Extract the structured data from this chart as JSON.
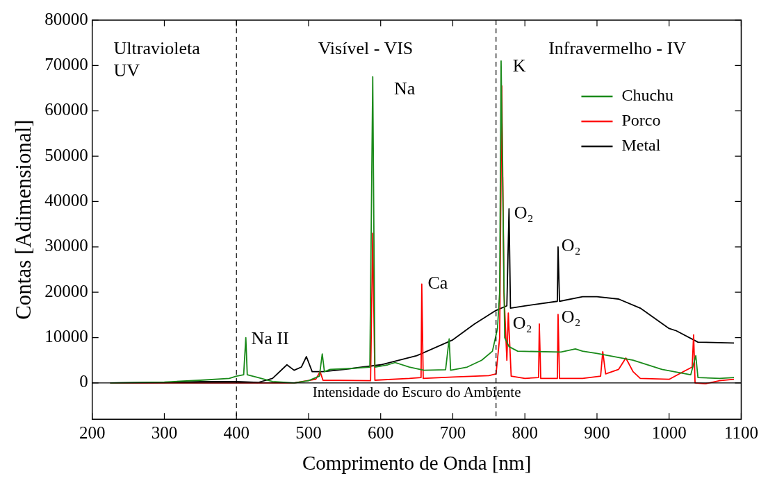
{
  "chart_data": {
    "type": "line",
    "xlabel": "Comprimento de Onda [nm]",
    "ylabel": "Contas [Adimensional]",
    "xlim": [
      200,
      1100
    ],
    "xticks": [
      200,
      300,
      400,
      500,
      600,
      700,
      800,
      900,
      1000,
      1100
    ],
    "ylim": [
      -8000,
      80000
    ],
    "yticks": [
      0,
      10000,
      20000,
      30000,
      40000,
      50000,
      60000,
      70000,
      80000
    ],
    "grid": false,
    "legend": "top right",
    "marker": "none",
    "line_style": "solid",
    "series": [
      {
        "name": "Chuchu",
        "color": "#1a8a1a",
        "x": [
          225,
          300,
          350,
          390,
          400,
          410,
          413,
          415,
          430,
          450,
          480,
          500,
          515,
          519,
          522,
          530,
          560,
          585,
          589,
          592,
          610,
          620,
          640,
          660,
          690,
          695,
          697,
          720,
          740,
          755,
          762,
          765,
          767,
          772,
          778,
          790,
          850,
          870,
          880,
          900,
          950,
          990,
          1030,
          1037,
          1040,
          1070,
          1090
        ],
        "values": [
          0,
          200,
          600,
          1000,
          1500,
          1800,
          10000,
          1800,
          1200,
          300,
          0,
          500,
          1500,
          6400,
          2500,
          3000,
          3200,
          3500,
          67500,
          3500,
          4000,
          4500,
          3500,
          2800,
          2900,
          9700,
          2800,
          3500,
          5000,
          7000,
          12000,
          20000,
          71000,
          10000,
          8000,
          7000,
          6800,
          7500,
          7000,
          6500,
          5000,
          3000,
          1800,
          6000,
          1200,
          1000,
          1200
        ]
      },
      {
        "name": "Porco",
        "color": "#ff0000",
        "x": [
          225,
          480,
          510,
          516,
          520,
          586,
          589,
          592,
          640,
          656,
          657,
          659,
          700,
          750,
          760,
          765,
          768,
          771,
          775,
          777,
          781,
          800,
          819,
          820,
          822,
          845,
          846,
          848,
          880,
          905,
          908,
          912,
          930,
          940,
          950,
          960,
          1000,
          1020,
          1032,
          1034,
          1036,
          1050,
          1070,
          1090
        ],
        "values": [
          0,
          0,
          800,
          2500,
          600,
          500,
          33000,
          600,
          1000,
          1200,
          21800,
          1000,
          1300,
          1600,
          2000,
          10000,
          65500,
          20000,
          5000,
          15400,
          1500,
          1000,
          1200,
          13000,
          1000,
          1000,
          15100,
          1000,
          1000,
          1500,
          6900,
          2000,
          3000,
          5500,
          2500,
          1000,
          800,
          2500,
          3500,
          10600,
          0,
          -200,
          500,
          800
        ]
      },
      {
        "name": "Metal",
        "color": "#000000",
        "x": [
          225,
          300,
          350,
          400,
          430,
          450,
          470,
          480,
          490,
          497,
          505,
          520,
          550,
          600,
          650,
          700,
          730,
          760,
          775,
          778,
          780,
          800,
          845,
          846,
          848,
          880,
          900,
          930,
          960,
          1000,
          1010,
          1040,
          1090
        ],
        "values": [
          0,
          100,
          300,
          300,
          100,
          1000,
          4000,
          2800,
          3500,
          5800,
          2500,
          2500,
          3000,
          4000,
          6000,
          9500,
          13000,
          16000,
          17000,
          38400,
          16500,
          17000,
          18000,
          30000,
          18000,
          19000,
          19000,
          18500,
          16500,
          12000,
          11500,
          9000,
          8800
        ]
      }
    ],
    "ref_lines": [
      {
        "axis": "x",
        "value": 400,
        "line_style": "dashed"
      },
      {
        "axis": "x",
        "value": 760,
        "line_style": "dashed"
      },
      {
        "axis": "y",
        "value": 0,
        "label": "Intensidade do Escuro do Ambiente"
      }
    ],
    "annotations": [
      "Ultravioleta\nUV",
      "Visível - VIS",
      "Infravermelho - IV",
      "Na II",
      "Na",
      "Ca",
      "K",
      "O₂",
      "O₂",
      "O₂",
      "O₂"
    ]
  }
}
